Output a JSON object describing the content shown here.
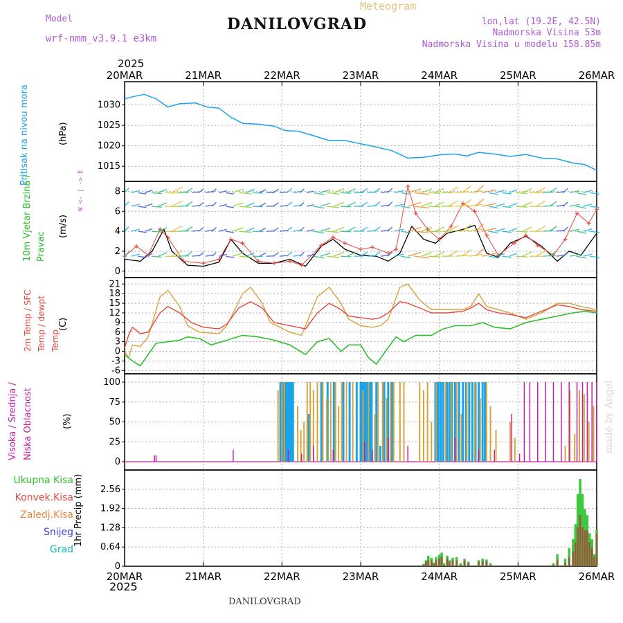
{
  "header": {
    "model_label": "Model",
    "model_value": "wrf-nmm_v3.9.1  e3km",
    "title": "DANILOVGRAD",
    "meteogram_label": "Meteogram",
    "lonlat": "lon,lat (19.2E, 42.5N)",
    "elevation": "Nadmorska Visina 53m",
    "model_elevation": "Nadmorska Visina u modelu 158.85m",
    "year_top": "2025",
    "year_bottom": "2025",
    "footer_name": "DANILOVGRAD",
    "watermark": "made by Angel"
  },
  "axis_dates": [
    "20MAR",
    "21MAR",
    "22MAR",
    "23MAR",
    "24MAR",
    "25MAR",
    "26MAR"
  ],
  "colors": {
    "pressure": "#1aa3e8",
    "temp2m": "#e8463c",
    "sfc": "#d9a23a",
    "dew": "#2cc02c",
    "wind_black": "#000000",
    "gust": "#e8463c",
    "high_cloud": "#1aa3e8",
    "mid_cloud": "#d9a23a",
    "low_cloud": "#c41ea8",
    "total_precip": "#3cc83c",
    "conv_precip": "#b04040",
    "snow": "#4040e0",
    "grid": "#aaaaaa"
  },
  "chart_data": [
    {
      "id": "pressure",
      "type": "line",
      "title": "Pritisak na nivou mora",
      "ylabel": "(hPa)",
      "ylim": [
        1013,
        1034
      ],
      "yticks": [
        1015,
        1020,
        1025,
        1030
      ],
      "xlim": [
        0,
        6
      ],
      "series": [
        {
          "name": "MSLP",
          "x": [
            0,
            0.1,
            0.25,
            0.4,
            0.55,
            0.7,
            0.9,
            1.05,
            1.2,
            1.35,
            1.5,
            1.7,
            1.9,
            2.05,
            2.2,
            2.4,
            2.6,
            2.8,
            3.0,
            3.2,
            3.4,
            3.6,
            3.8,
            4.0,
            4.2,
            4.35,
            4.5,
            4.7,
            4.9,
            5.1,
            5.3,
            5.5,
            5.7,
            5.85,
            6.0
          ],
          "values": [
            1031.5,
            1032,
            1032.6,
            1031.5,
            1029.5,
            1030.3,
            1030.5,
            1029.5,
            1029.2,
            1027,
            1025.5,
            1025.3,
            1024.8,
            1023.7,
            1023.6,
            1022.5,
            1021.3,
            1021.3,
            1020.5,
            1019.7,
            1018.8,
            1017,
            1017.2,
            1017.8,
            1018,
            1017.5,
            1018.4,
            1018,
            1017.4,
            1017.9,
            1017,
            1016.8,
            1015.8,
            1015.4,
            1014
          ]
        }
      ]
    },
    {
      "id": "wind",
      "type": "line",
      "title": "10m Vjetar Brzina i Pravac",
      "ylabel": "(m/s)",
      "ylim": [
        -0.5,
        9
      ],
      "yticks": [
        0,
        2,
        4,
        6,
        8
      ],
      "xlim": [
        0,
        6
      ],
      "compass": {
        "north": "N",
        "east": "E",
        "west": "W",
        "south": "S",
        "legend": "W  <- | ->  E"
      },
      "series": [
        {
          "name": "Wind speed",
          "x": [
            0,
            0.2,
            0.35,
            0.5,
            0.6,
            0.8,
            1.0,
            1.2,
            1.35,
            1.5,
            1.7,
            1.9,
            2.1,
            2.3,
            2.5,
            2.65,
            2.8,
            3.0,
            3.2,
            3.35,
            3.5,
            3.65,
            3.8,
            3.95,
            4.1,
            4.3,
            4.45,
            4.6,
            4.75,
            4.9,
            5.1,
            5.3,
            5.5,
            5.65,
            5.8,
            6.0
          ],
          "values": [
            1.2,
            1.0,
            2.0,
            4.2,
            2.0,
            0.6,
            0.5,
            0.9,
            3.2,
            1.8,
            0.8,
            0.8,
            1.2,
            0.5,
            2.5,
            3.2,
            2.2,
            1.6,
            1.5,
            1.0,
            1.8,
            4.5,
            3.2,
            2.8,
            3.8,
            4.2,
            4.6,
            1.8,
            1.4,
            2.8,
            3.5,
            2.5,
            1.0,
            2.0,
            1.6,
            3.8
          ]
        },
        {
          "name": "Gust",
          "x": [
            0,
            0.15,
            0.3,
            0.45,
            0.55,
            0.75,
            1.0,
            1.2,
            1.35,
            1.5,
            1.7,
            1.9,
            2.1,
            2.25,
            2.5,
            2.65,
            2.8,
            3.0,
            3.15,
            3.35,
            3.45,
            3.6,
            3.7,
            3.85,
            4.0,
            4.15,
            4.3,
            4.45,
            4.6,
            4.75,
            4.95,
            5.1,
            5.25,
            5.45,
            5.6,
            5.75,
            5.9,
            6.0
          ],
          "values": [
            1.5,
            2.5,
            1.6,
            4.2,
            3.4,
            1.0,
            0.8,
            1.2,
            3.2,
            2.8,
            1.0,
            0.8,
            1.0,
            0.6,
            2.6,
            3.4,
            2.8,
            2.2,
            2.4,
            1.8,
            2.2,
            8.5,
            5.8,
            4.2,
            3.2,
            4.5,
            6.8,
            6.0,
            3.6,
            1.6,
            2.8,
            3.6,
            2.6,
            1.6,
            3.2,
            5.8,
            4.8,
            6.2
          ]
        }
      ]
    },
    {
      "id": "temperature",
      "type": "line",
      "title": "2m Temp / SFC Temp / dewpt Temp",
      "ylabel": "(C)",
      "ylim": [
        -7,
        23
      ],
      "yticks": [
        -6,
        -3,
        0,
        3,
        6,
        9,
        12,
        15,
        18,
        21
      ],
      "xlim": [
        0,
        6
      ],
      "series": [
        {
          "name": "2m Temp",
          "x": [
            0,
            0.05,
            0.1,
            0.2,
            0.3,
            0.45,
            0.55,
            0.7,
            0.85,
            1.0,
            1.2,
            1.3,
            1.45,
            1.6,
            1.75,
            1.9,
            2.1,
            2.3,
            2.45,
            2.6,
            2.75,
            2.85,
            3.0,
            3.15,
            3.25,
            3.35,
            3.5,
            3.6,
            3.75,
            3.9,
            4.1,
            4.3,
            4.4,
            4.5,
            4.6,
            4.75,
            4.9,
            5.1,
            5.3,
            5.5,
            5.65,
            5.8,
            6.0
          ],
          "values": [
            1,
            5,
            7.5,
            5.5,
            6,
            12,
            14,
            12,
            9,
            7.5,
            7,
            8.5,
            13.5,
            15.5,
            13.5,
            9,
            8,
            7,
            12,
            15,
            13,
            11,
            10.5,
            10,
            10.5,
            12,
            15.5,
            15,
            13.5,
            12,
            12,
            12.5,
            13.5,
            15,
            13,
            12,
            11.5,
            10.5,
            12.5,
            14.5,
            14,
            13,
            12.5
          ]
        },
        {
          "name": "SFC Temp",
          "x": [
            0,
            0.05,
            0.1,
            0.2,
            0.3,
            0.45,
            0.55,
            0.7,
            0.8,
            0.95,
            1.2,
            1.3,
            1.5,
            1.6,
            1.75,
            1.85,
            2.1,
            2.25,
            2.45,
            2.6,
            2.75,
            2.85,
            3.0,
            3.15,
            3.25,
            3.35,
            3.5,
            3.6,
            3.75,
            3.9,
            4.1,
            4.3,
            4.4,
            4.5,
            4.6,
            4.75,
            4.9,
            5.1,
            5.3,
            5.5,
            5.65,
            5.8,
            6.0
          ],
          "values": [
            0,
            -2,
            2,
            1.5,
            4.5,
            17,
            19,
            14,
            8,
            6,
            5.5,
            8,
            18,
            20,
            15,
            9,
            6,
            5,
            17,
            20,
            15,
            10,
            8,
            7.5,
            8,
            10,
            20,
            21,
            16,
            13,
            13,
            13,
            14,
            18,
            14,
            13,
            12,
            10,
            12,
            15,
            15,
            14,
            13
          ]
        },
        {
          "name": "dewpt Temp",
          "x": [
            0,
            0.1,
            0.2,
            0.3,
            0.4,
            0.55,
            0.7,
            0.8,
            0.95,
            1.1,
            1.3,
            1.5,
            1.7,
            1.9,
            2.1,
            2.3,
            2.45,
            2.6,
            2.75,
            2.85,
            3.0,
            3.1,
            3.2,
            3.3,
            3.45,
            3.55,
            3.7,
            3.9,
            4.05,
            4.2,
            4.4,
            4.55,
            4.7,
            4.9,
            5.1,
            5.3,
            5.5,
            5.7,
            5.85,
            6.0
          ],
          "values": [
            -1,
            -3,
            -4.5,
            -1,
            2.5,
            3,
            3.5,
            4.5,
            4,
            2,
            3.5,
            5,
            4.5,
            3.5,
            2,
            -1,
            3,
            4,
            0,
            2,
            2,
            -2,
            -4,
            -0.5,
            4.5,
            3,
            5,
            5,
            7,
            8,
            8,
            9,
            7.5,
            7,
            9,
            10,
            11,
            12,
            12.5,
            12
          ]
        }
      ]
    },
    {
      "id": "cloud",
      "type": "bar",
      "title": "Visoka / Srednja / Niska Oblacnost",
      "ylabel": "(%)",
      "ylim": [
        0,
        100
      ],
      "yticks": [
        0,
        25,
        50,
        75,
        100
      ],
      "xlim": [
        0,
        6
      ],
      "series": [
        {
          "name": "Visoka Oblacnost",
          "x": [
            1.98,
            2.0,
            2.02,
            2.04,
            2.06,
            2.08,
            2.1,
            2.12,
            2.14,
            2.34,
            2.5,
            2.58,
            2.66,
            2.78,
            2.86,
            2.95,
            3.0,
            3.02,
            3.04,
            3.06,
            3.08,
            3.1,
            3.12,
            3.14,
            3.2,
            3.25,
            3.3,
            3.35,
            3.4,
            3.95,
            3.97,
            3.99,
            4.02,
            4.05,
            4.1,
            4.13,
            4.16,
            4.2,
            4.25,
            4.3,
            4.34,
            4.38,
            4.42,
            4.46,
            4.5,
            4.55,
            4.58
          ],
          "values": [
            100,
            100,
            100,
            100,
            100,
            100,
            100,
            100,
            100,
            60,
            100,
            100,
            100,
            100,
            100,
            100,
            100,
            100,
            100,
            100,
            100,
            100,
            100,
            100,
            100,
            20,
            100,
            100,
            100,
            100,
            100,
            100,
            100,
            100,
            100,
            100,
            100,
            100,
            100,
            100,
            100,
            100,
            100,
            100,
            100,
            100,
            100
          ]
        },
        {
          "name": "Srednja Oblacnost",
          "x": [
            1.95,
            2.0,
            2.03,
            2.2,
            2.24,
            2.28,
            2.32,
            2.36,
            2.4,
            2.45,
            2.52,
            2.57,
            2.62,
            2.68,
            2.72,
            2.76,
            2.82,
            2.9,
            3.03,
            3.1,
            3.18,
            3.22,
            3.28,
            3.33,
            3.38,
            3.42,
            3.5,
            3.55,
            3.75,
            3.8,
            3.85,
            3.9,
            3.96,
            4.08,
            4.15,
            4.22,
            4.28,
            4.35,
            4.45,
            4.52,
            4.6,
            4.65,
            4.72,
            4.9,
            4.96,
            5.6,
            5.66,
            5.72,
            5.78,
            5.84,
            5.9,
            5.96
          ],
          "values": [
            90,
            100,
            100,
            70,
            40,
            50,
            100,
            100,
            90,
            100,
            100,
            80,
            100,
            100,
            70,
            100,
            100,
            100,
            90,
            100,
            60,
            100,
            100,
            80,
            100,
            100,
            100,
            100,
            100,
            90,
            100,
            50,
            100,
            100,
            100,
            100,
            60,
            100,
            100,
            80,
            100,
            70,
            40,
            50,
            30,
            20,
            90,
            35,
            90,
            85,
            50,
            70
          ]
        },
        {
          "name": "Niska Oblacnost",
          "x": [
            0.38,
            0.4,
            1.38,
            2.08,
            2.25,
            2.4,
            2.65,
            3.05,
            3.15,
            3.35,
            3.6,
            4.2,
            4.5,
            4.7,
            4.92,
            5.02,
            5.08,
            5.15,
            5.25,
            5.35,
            5.45,
            5.55,
            5.65,
            5.75,
            5.82,
            5.88,
            5.94,
            6.0
          ],
          "values": [
            8,
            8,
            15,
            15,
            10,
            20,
            15,
            25,
            15,
            30,
            20,
            30,
            15,
            15,
            60,
            10,
            100,
            100,
            100,
            100,
            100,
            100,
            100,
            100,
            100,
            100,
            100,
            100
          ]
        }
      ]
    },
    {
      "id": "precip",
      "type": "bar",
      "title": "1hr Precip",
      "ylabel": "1hr Precip (mm)",
      "ylim": [
        0,
        3.2
      ],
      "yticks": [
        0,
        0.64,
        1.28,
        1.92,
        2.56
      ],
      "legend": [
        "Ukupna Kisa",
        "Konvek.Kisa",
        "Zaledj.Kisa",
        "Snijeg",
        "Grad"
      ],
      "xlim": [
        0,
        6
      ],
      "series": [
        {
          "name": "Ukupna Kisa",
          "x": [
            3.8,
            3.83,
            3.86,
            3.9,
            3.93,
            3.96,
            4.0,
            4.03,
            4.06,
            4.1,
            4.13,
            4.17,
            4.22,
            4.27,
            4.32,
            4.37,
            4.5,
            4.55,
            4.6,
            4.65,
            5.45,
            5.5,
            5.6,
            5.65,
            5.7,
            5.73,
            5.76,
            5.79,
            5.82,
            5.85,
            5.88,
            5.91,
            5.94,
            5.97,
            6.0
          ],
          "values": [
            0.08,
            0.2,
            0.35,
            0.28,
            0.12,
            0.3,
            0.38,
            0.45,
            0.1,
            0.35,
            0.2,
            0.28,
            0.3,
            0.1,
            0.25,
            0.15,
            0.2,
            0.25,
            0.22,
            0.1,
            0.1,
            0.4,
            0.25,
            0.6,
            0.9,
            1.4,
            2.4,
            2.9,
            2.4,
            1.9,
            1.7,
            1.1,
            0.9,
            0.4,
            1.2
          ]
        },
        {
          "name": "Konvek.Kisa",
          "x": [
            3.8,
            3.83,
            3.86,
            3.9,
            3.93,
            3.96,
            4.0,
            4.03,
            4.06,
            4.1,
            4.13,
            4.17,
            4.22,
            4.27,
            4.32,
            4.37,
            4.5,
            4.55,
            4.6,
            4.65,
            5.45,
            5.5,
            5.6,
            5.65,
            5.7,
            5.73,
            5.76,
            5.79,
            5.82,
            5.85,
            5.88,
            5.91,
            5.94,
            5.97,
            6.0
          ],
          "values": [
            0.05,
            0.15,
            0.2,
            0.2,
            0.08,
            0.2,
            0.25,
            0.3,
            0.05,
            0.25,
            0.15,
            0.2,
            0.2,
            0.05,
            0.18,
            0.1,
            0.15,
            0.18,
            0.15,
            0.05,
            0.05,
            0.2,
            0.1,
            0.3,
            0.5,
            0.8,
            1.3,
            1.7,
            1.3,
            1.2,
            1.2,
            0.8,
            0.6,
            0.3,
            1.1
          ]
        }
      ]
    }
  ]
}
